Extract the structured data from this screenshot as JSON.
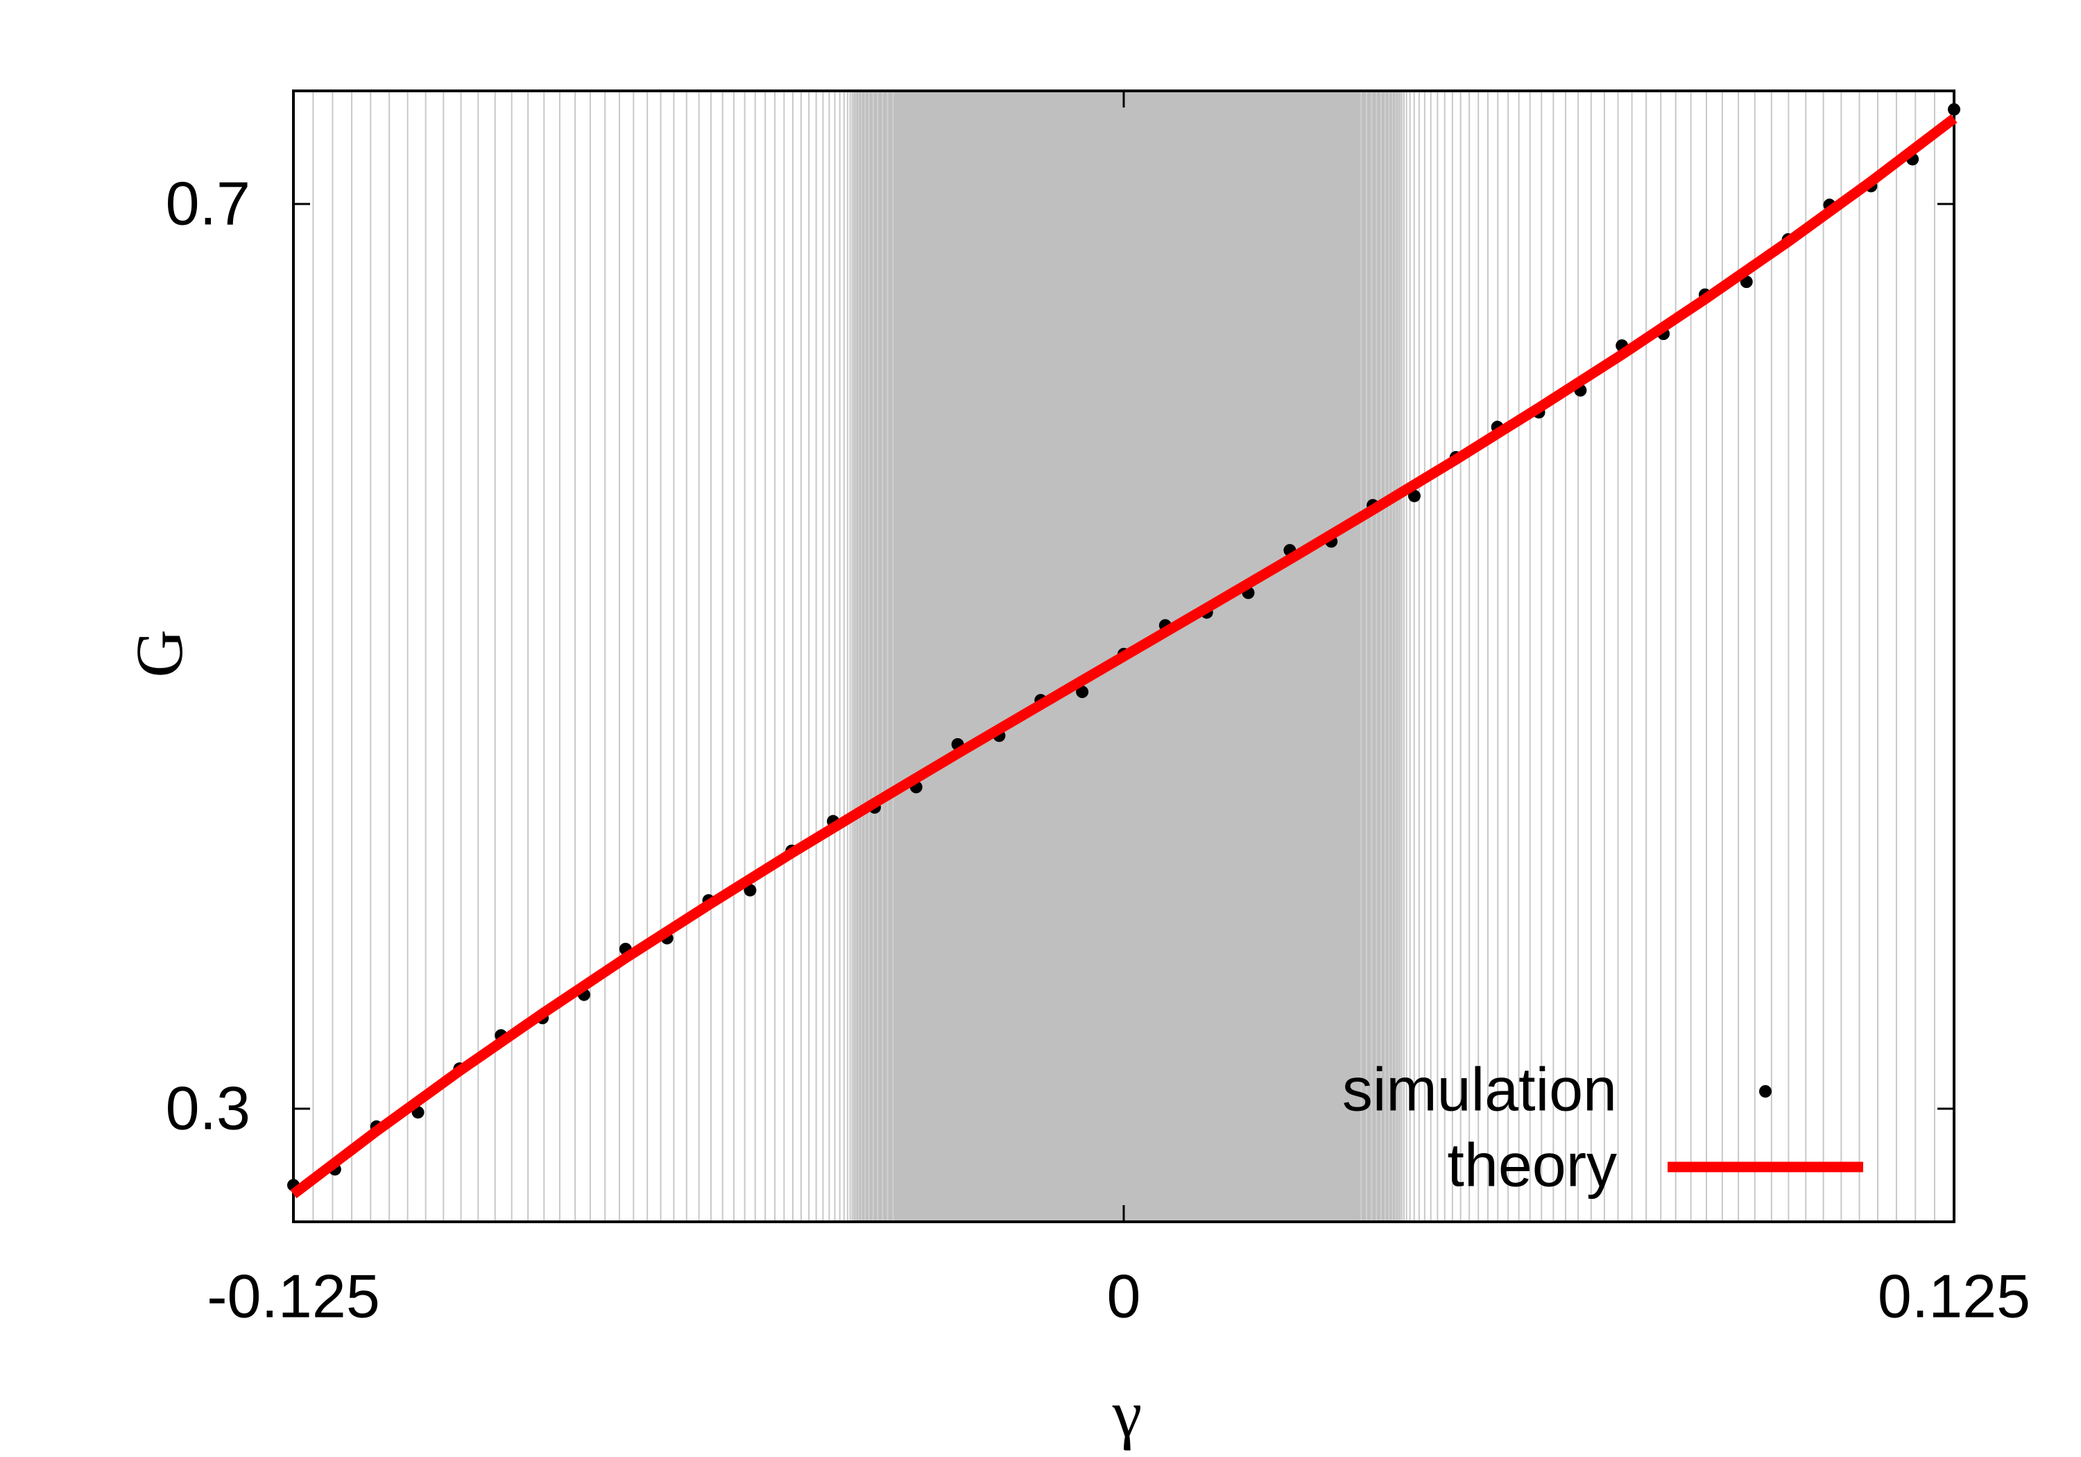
{
  "chart_data": {
    "type": "scatter",
    "xlabel": "γ",
    "ylabel": "G",
    "xlim": [
      -0.125,
      0.125
    ],
    "ylim": [
      0.25,
      0.75
    ],
    "xticks": [
      -0.125,
      0,
      0.125
    ],
    "yticks": [
      0.3,
      0.7
    ],
    "shaded_region": [
      -0.041,
      0.042
    ],
    "legend": "bottom-right",
    "series": [
      {
        "name": "simulation",
        "mode": "markers",
        "color": "#000000",
        "x": [
          -0.125,
          -0.11875,
          -0.1125,
          -0.10625,
          -0.1,
          -0.09375,
          -0.0875,
          -0.08125,
          -0.075,
          -0.06875,
          -0.0625,
          -0.05625,
          -0.05,
          -0.04375,
          -0.0375,
          -0.03125,
          -0.025,
          -0.01875,
          -0.0125,
          -0.00625,
          0,
          0.00625,
          0.0125,
          0.01875,
          0.025,
          0.03125,
          0.0375,
          0.04375,
          0.05,
          0.05625,
          0.0625,
          0.06875,
          0.075,
          0.08125,
          0.0875,
          0.09375,
          0.1,
          0.10625,
          0.1125,
          0.11875,
          0.125
        ],
        "values": [
          0.2662,
          0.2732,
          0.2921,
          0.2984,
          0.3177,
          0.3324,
          0.3401,
          0.3504,
          0.3706,
          0.3754,
          0.3921,
          0.3966,
          0.414,
          0.4271,
          0.4332,
          0.4422,
          0.4611,
          0.4649,
          0.4806,
          0.4843,
          0.501,
          0.5137,
          0.5194,
          0.5281,
          0.5469,
          0.5508,
          0.5668,
          0.5709,
          0.588,
          0.6014,
          0.6079,
          0.6176,
          0.6374,
          0.6426,
          0.6599,
          0.6656,
          0.6843,
          0.6996,
          0.7079,
          0.7198,
          0.7418
        ]
      },
      {
        "name": "theory",
        "mode": "line",
        "color": "#ff0000",
        "x": [
          -0.125,
          -0.1125,
          -0.1,
          -0.0875,
          -0.075,
          -0.0625,
          -0.05,
          -0.0375,
          -0.025,
          -0.0125,
          0,
          0.0125,
          0.025,
          0.0375,
          0.05,
          0.0625,
          0.075,
          0.0875,
          0.1,
          0.1125,
          0.125
        ],
        "values": [
          0.2622,
          0.2901,
          0.3167,
          0.3421,
          0.3666,
          0.3901,
          0.413,
          0.4352,
          0.4571,
          0.4786,
          0.5,
          0.5214,
          0.5429,
          0.5648,
          0.587,
          0.6099,
          0.6334,
          0.6579,
          0.6833,
          0.7099,
          0.7378
        ]
      }
    ]
  }
}
